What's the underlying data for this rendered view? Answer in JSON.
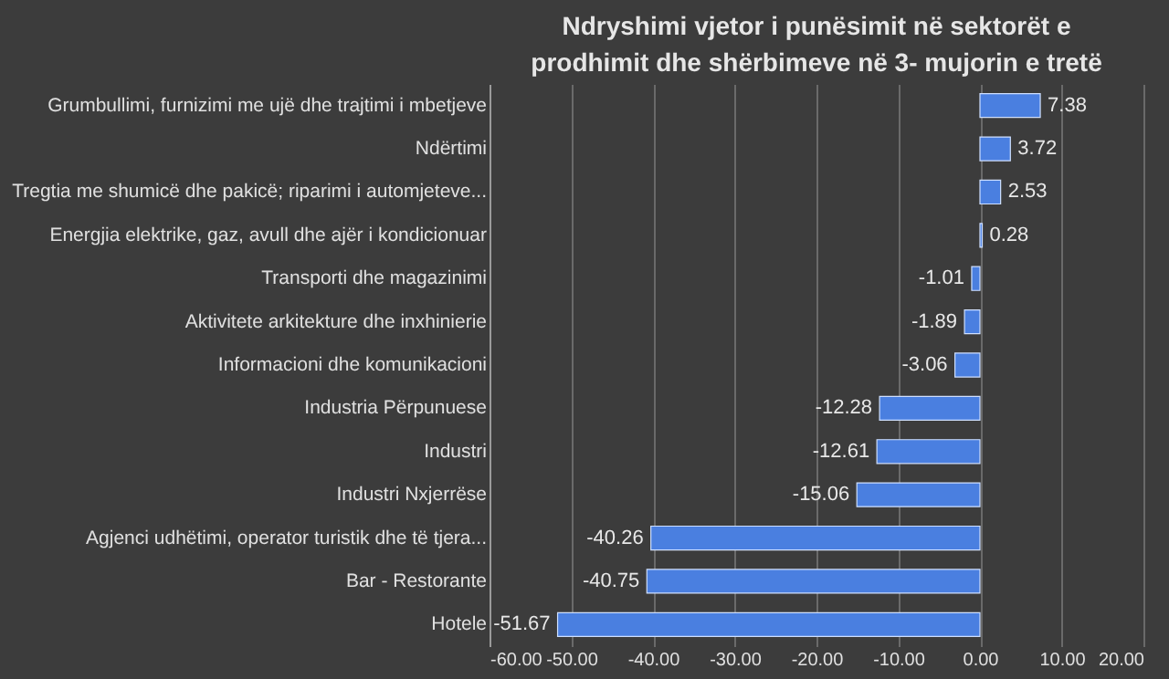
{
  "chart_data": {
    "type": "bar",
    "orientation": "horizontal",
    "title": "Ndryshimi vjetor i punësimit në sektorët e prodhimit dhe shërbimeve në 3- mujorin e tretë",
    "categories": [
      "Grumbullimi, furnizimi me ujë dhe trajtimi i mbetjeve",
      "Ndërtimi",
      "Tregtia me shumicë dhe pakicë; riparimi i automjeteve...",
      "Energjia elektrike, gaz, avull dhe ajër i kondicionuar",
      "Transporti dhe magazinimi",
      "Aktivitete arkitekture dhe inxhinierie",
      "Informacioni dhe komunikacioni",
      "Industria Përpunuese",
      "Industri",
      "Industri Nxjerrëse",
      "Agjenci udhëtimi, operator turistik dhe të tjera...",
      "Bar - Restorante",
      "Hotele"
    ],
    "values": [
      7.38,
      3.72,
      2.53,
      0.28,
      -1.01,
      -1.89,
      -3.06,
      -12.28,
      -12.61,
      -15.06,
      -40.26,
      -40.75,
      -51.67
    ],
    "color": "#4a7fe0",
    "data_labels": true,
    "grid": "x",
    "xlim": [
      -60,
      20
    ],
    "xticks": [
      {
        "value": -60,
        "label": "-60.00"
      },
      {
        "value": -50,
        "label": "-50.00"
      },
      {
        "value": -40,
        "label": "-40.00"
      },
      {
        "value": -30,
        "label": "-30.00"
      },
      {
        "value": -20,
        "label": "-20.00"
      },
      {
        "value": -10,
        "label": "-10.00"
      },
      {
        "value": 0,
        "label": "0.00"
      },
      {
        "value": 10,
        "label": "10.00"
      },
      {
        "value": 20,
        "label": "20.00"
      }
    ]
  }
}
